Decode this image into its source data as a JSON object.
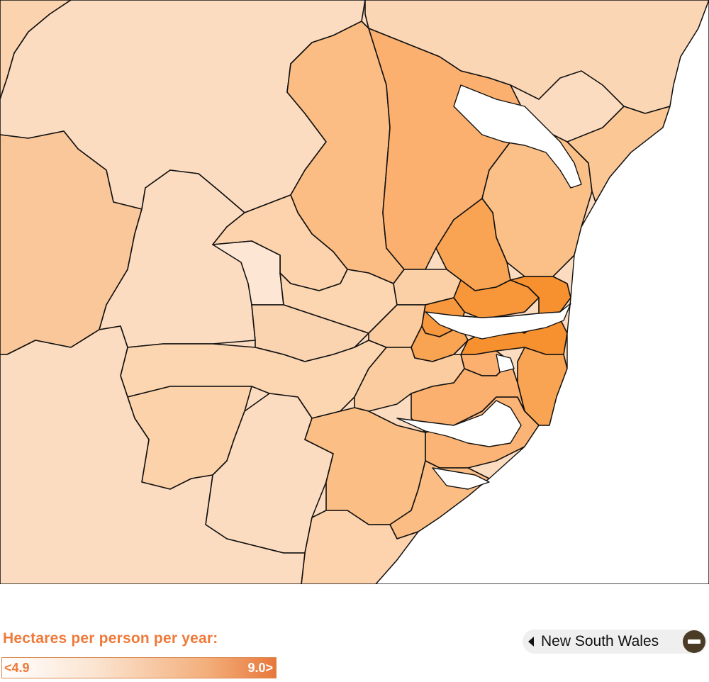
{
  "legend": {
    "title": "Hectares per person per year:",
    "min_label": "<4.9",
    "max_label": "9.0>",
    "color_low": "#ffffff",
    "color_high": "#e8783c"
  },
  "navigation": {
    "label": "New South Wales",
    "back_icon": "triangle-left-icon",
    "zoom_icon": "minus-circle-icon"
  },
  "map": {
    "colors": {
      "lightest": "#fde7d2",
      "light": "#fcd9b6",
      "medium": "#fbc88f",
      "strong": "#f9a85a",
      "darkest": "#f7902e",
      "water": "#ffffff"
    }
  }
}
